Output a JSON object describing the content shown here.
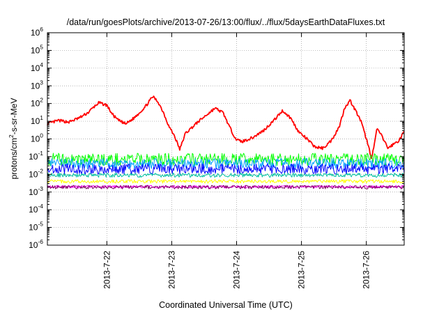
{
  "chart_data": {
    "type": "line",
    "title": "/data/run/goesPlots/archive/2013-07-26/13:00/flux/../flux/5daysEarthDataFluxes.txt",
    "xlabel": "Coordinated Universal Time (UTC)",
    "ylabel_parts": {
      "base": "protons/cm",
      "sup": "2",
      "rest": "-s-sr-MeV"
    },
    "y_scale": "log",
    "ylim": [
      1e-06,
      1000000.0
    ],
    "y_ticks": [
      {
        "value": 1e-06,
        "base": "10",
        "exp": "-6"
      },
      {
        "value": 1e-05,
        "base": "10",
        "exp": "-5"
      },
      {
        "value": 0.0001,
        "base": "10",
        "exp": "-4"
      },
      {
        "value": 0.001,
        "base": "10",
        "exp": "-3"
      },
      {
        "value": 0.01,
        "base": "10",
        "exp": "-2"
      },
      {
        "value": 0.1,
        "base": "10",
        "exp": "-1"
      },
      {
        "value": 1.0,
        "base": "10",
        "exp": "0"
      },
      {
        "value": 10.0,
        "base": "10",
        "exp": "1"
      },
      {
        "value": 100.0,
        "base": "10",
        "exp": "2"
      },
      {
        "value": 1000.0,
        "base": "10",
        "exp": "3"
      },
      {
        "value": 10000.0,
        "base": "10",
        "exp": "4"
      },
      {
        "value": 100000.0,
        "base": "10",
        "exp": "5"
      },
      {
        "value": 1000000.0,
        "base": "10",
        "exp": "6"
      }
    ],
    "xlim": [
      "2013-07-21T02:00",
      "2013-07-26T14:00"
    ],
    "x_ticks": [
      {
        "value": "2013-07-22T00:00",
        "label": "2013-7-22"
      },
      {
        "value": "2013-07-23T00:00",
        "label": "2013-7-23"
      },
      {
        "value": "2013-07-24T00:00",
        "label": "2013-7-24"
      },
      {
        "value": "2013-07-25T00:00",
        "label": "2013-7-25"
      },
      {
        "value": "2013-07-26T00:00",
        "label": "2013-7-26"
      }
    ],
    "grid": true,
    "series": [
      {
        "color": "#ff0000",
        "noise": 0.08,
        "points": [
          [
            "2013-07-21T02:00",
            7
          ],
          [
            "2013-07-21T06:00",
            11
          ],
          [
            "2013-07-21T10:00",
            9
          ],
          [
            "2013-07-21T14:00",
            16
          ],
          [
            "2013-07-21T17:00",
            30
          ],
          [
            "2013-07-21T19:00",
            60
          ],
          [
            "2013-07-21T21:00",
            110
          ],
          [
            "2013-07-22T00:00",
            80
          ],
          [
            "2013-07-22T02:00",
            25
          ],
          [
            "2013-07-22T04:00",
            12
          ],
          [
            "2013-07-22T07:00",
            7
          ],
          [
            "2013-07-22T10:00",
            15
          ],
          [
            "2013-07-22T14:00",
            60
          ],
          [
            "2013-07-22T17:00",
            250
          ],
          [
            "2013-07-22T19:00",
            120
          ],
          [
            "2013-07-22T21:00",
            30
          ],
          [
            "2013-07-22T23:00",
            5
          ],
          [
            "2013-07-23T01:00",
            1.5
          ],
          [
            "2013-07-23T03:00",
            0.25
          ],
          [
            "2013-07-23T05:00",
            2
          ],
          [
            "2013-07-23T10:00",
            10
          ],
          [
            "2013-07-23T16:00",
            55
          ],
          [
            "2013-07-23T19:00",
            30
          ],
          [
            "2013-07-23T22:00",
            3
          ],
          [
            "2013-07-24T00:00",
            0.9
          ],
          [
            "2013-07-24T02:00",
            0.7
          ],
          [
            "2013-07-24T06:00",
            1.2
          ],
          [
            "2013-07-24T10:00",
            3
          ],
          [
            "2013-07-24T14:00",
            12
          ],
          [
            "2013-07-24T17:00",
            40
          ],
          [
            "2013-07-24T20:00",
            15
          ],
          [
            "2013-07-24T23:00",
            2.5
          ],
          [
            "2013-07-25T02:00",
            1
          ],
          [
            "2013-07-25T05:00",
            0.35
          ],
          [
            "2013-07-25T08:00",
            0.3
          ],
          [
            "2013-07-25T11:00",
            0.8
          ],
          [
            "2013-07-25T14:00",
            5
          ],
          [
            "2013-07-25T16:00",
            60
          ],
          [
            "2013-07-25T18:00",
            150
          ],
          [
            "2013-07-25T20:00",
            40
          ],
          [
            "2013-07-25T22:00",
            10
          ],
          [
            "2013-07-26T00:00",
            1
          ],
          [
            "2013-07-26T02:00",
            0.08
          ],
          [
            "2013-07-26T04:00",
            4
          ],
          [
            "2013-07-26T06:00",
            1.2
          ],
          [
            "2013-07-26T08:00",
            0.3
          ],
          [
            "2013-07-26T10:00",
            0.5
          ],
          [
            "2013-07-26T12:00",
            0.8
          ],
          [
            "2013-07-26T14:00",
            2.5
          ]
        ]
      },
      {
        "color": "#00ff00",
        "noise": 0.35,
        "points": [
          [
            "2013-07-21T02:00",
            0.07
          ],
          [
            "2013-07-26T14:00",
            0.07
          ]
        ]
      },
      {
        "color": "#00a0ff",
        "noise": 0.3,
        "points": [
          [
            "2013-07-21T02:00",
            0.04
          ],
          [
            "2013-07-26T14:00",
            0.04
          ]
        ]
      },
      {
        "color": "#0000ff",
        "noise": 0.3,
        "points": [
          [
            "2013-07-21T02:00",
            0.02
          ],
          [
            "2013-07-26T14:00",
            0.02
          ]
        ]
      },
      {
        "color": "#00c0a0",
        "noise": 0.12,
        "points": [
          [
            "2013-07-21T02:00",
            0.009
          ],
          [
            "2013-07-26T14:00",
            0.009
          ]
        ]
      },
      {
        "color": "#ffff00",
        "noise": 0.1,
        "points": [
          [
            "2013-07-21T02:00",
            0.004
          ],
          [
            "2013-07-26T14:00",
            0.004
          ]
        ]
      },
      {
        "color": "#ff00ff",
        "noise": 0.08,
        "points": [
          [
            "2013-07-21T02:00",
            0.002
          ],
          [
            "2013-07-26T14:00",
            0.002
          ]
        ]
      },
      {
        "color": "#800060",
        "noise": 0.1,
        "points": [
          [
            "2013-07-21T02:00",
            0.0019
          ],
          [
            "2013-07-26T14:00",
            0.0019
          ]
        ]
      }
    ]
  }
}
